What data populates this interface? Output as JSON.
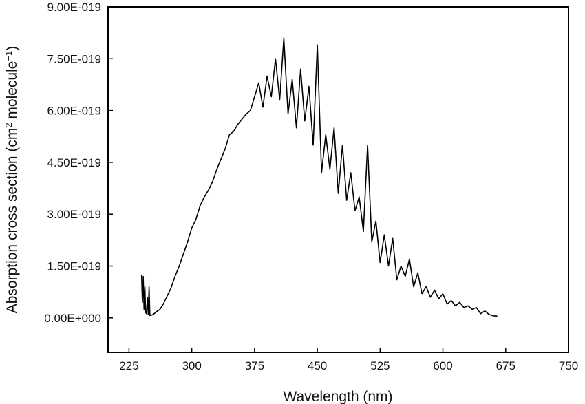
{
  "chart_data": {
    "type": "line",
    "xlabel": "Wavelength (nm)",
    "ylabel": {
      "prefix": "Absorption cross section (cm",
      "sup1": "2",
      "middle": " molecule",
      "sup2": "−1",
      "suffix": ")"
    },
    "xlim": [
      200,
      750
    ],
    "ylim": [
      -1e-19,
      9e-19
    ],
    "x_ticks": [
      225,
      300,
      375,
      450,
      525,
      600,
      675,
      750
    ],
    "y_ticks": [
      0,
      1.5e-19,
      3e-19,
      4.5e-19,
      6e-19,
      7.5e-19,
      9e-19
    ],
    "x_tick_labels": [
      "225",
      "300",
      "375",
      "450",
      "525",
      "600",
      "675",
      "750"
    ],
    "y_tick_labels": [
      "0.00E+000",
      "1.50E-019",
      "3.00E-019",
      "4.50E-019",
      "6.00E-019",
      "7.50E-019",
      "9.00E-019"
    ],
    "line_color": "#000000",
    "series": [
      {
        "name": "Absorption cross section",
        "x": [
          240,
          241,
          242,
          243,
          244,
          245,
          246,
          247,
          248,
          249,
          250,
          252,
          255,
          258,
          262,
          266,
          270,
          275,
          280,
          285,
          290,
          295,
          300,
          305,
          310,
          315,
          320,
          325,
          330,
          335,
          340,
          345,
          350,
          355,
          360,
          365,
          370,
          375,
          380,
          385,
          390,
          395,
          400,
          405,
          410,
          415,
          420,
          425,
          430,
          435,
          440,
          445,
          450,
          455,
          460,
          465,
          470,
          475,
          480,
          485,
          490,
          495,
          500,
          505,
          510,
          515,
          520,
          525,
          530,
          535,
          540,
          545,
          550,
          555,
          560,
          565,
          570,
          575,
          580,
          585,
          590,
          595,
          600,
          605,
          610,
          615,
          620,
          625,
          630,
          635,
          640,
          645,
          650,
          655,
          660,
          665
        ],
        "y": [
          1.25e-19,
          4.5e-20,
          1.2e-19,
          2.5e-20,
          9e-20,
          1.5e-20,
          1.2e-20,
          6e-20,
          1e-20,
          9e-20,
          7e-21,
          8e-21,
          1.2e-20,
          1.8e-20,
          2.5e-20,
          4e-20,
          6e-20,
          8.5e-20,
          1.2e-19,
          1.5e-19,
          1.85e-19,
          2.2e-19,
          2.6e-19,
          2.85e-19,
          3.25e-19,
          3.5e-19,
          3.7e-19,
          3.95e-19,
          4.3e-19,
          4.6e-19,
          4.9e-19,
          5.3e-19,
          5.4e-19,
          5.6e-19,
          5.75e-19,
          5.9e-19,
          6e-19,
          6.4e-19,
          6.8e-19,
          6.1e-19,
          7e-19,
          6.4e-19,
          7.5e-19,
          6.3e-19,
          8.1e-19,
          5.9e-19,
          6.9e-19,
          5.5e-19,
          7.2e-19,
          5.7e-19,
          6.7e-19,
          5e-19,
          7.9e-19,
          4.2e-19,
          5.3e-19,
          4.3e-19,
          5.5e-19,
          3.6e-19,
          5e-19,
          3.4e-19,
          4.2e-19,
          3.1e-19,
          3.5e-19,
          2.5e-19,
          5e-19,
          2.2e-19,
          2.8e-19,
          1.6e-19,
          2.4e-19,
          1.5e-19,
          2.3e-19,
          1.1e-19,
          1.5e-19,
          1.2e-19,
          1.7e-19,
          9e-20,
          1.3e-19,
          7e-20,
          9e-20,
          6e-20,
          8e-20,
          5.5e-20,
          7e-20,
          4e-20,
          5e-20,
          3.5e-20,
          4.5e-20,
          3e-20,
          3.5e-20,
          2.5e-20,
          3e-20,
          1.2e-20,
          2e-20,
          1e-20,
          6e-21,
          5e-21
        ]
      }
    ]
  }
}
